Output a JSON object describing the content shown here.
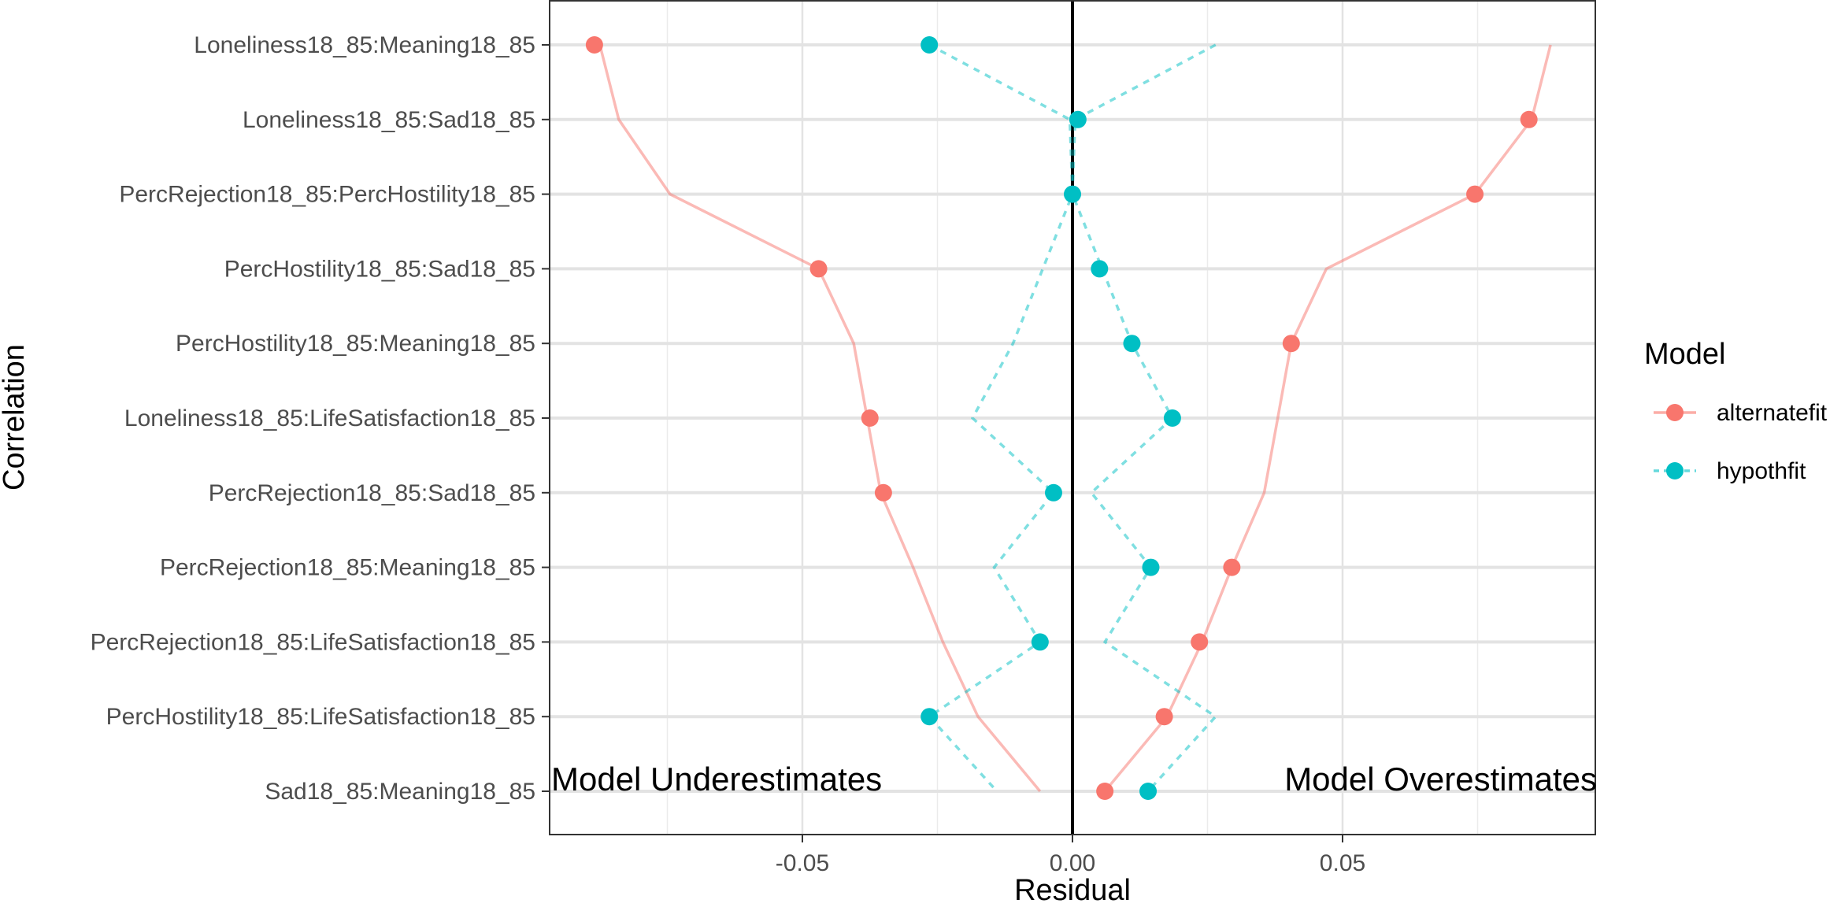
{
  "chart_data": {
    "type": "scatter",
    "xlabel": "Residual",
    "ylabel": "Correlation",
    "xlim": [
      -0.0975,
      0.0975
    ],
    "x_ticks": [
      -0.05,
      0.0,
      0.05
    ],
    "x_tick_labels": [
      "-0.05",
      "0.00",
      "0.05"
    ],
    "grid": true,
    "zero_line": 0.0,
    "categories": [
      "Loneliness18_85:Meaning18_85",
      "Loneliness18_85:Sad18_85",
      "PercRejection18_85:PercHostility18_85",
      "PercHostility18_85:Sad18_85",
      "PercHostility18_85:Meaning18_85",
      "Loneliness18_85:LifeSatisfaction18_85",
      "PercRejection18_85:Sad18_85",
      "PercRejection18_85:Meaning18_85",
      "PercRejection18_85:LifeSatisfaction18_85",
      "PercHostility18_85:LifeSatisfaction18_85",
      "Sad18_85:Meaning18_85"
    ],
    "series": [
      {
        "name": "alternatefit",
        "color": "#F8766D",
        "values": [
          -0.0885,
          0.0845,
          0.0745,
          -0.047,
          0.0405,
          -0.0375,
          -0.035,
          0.0295,
          0.0235,
          0.017,
          0.006
        ],
        "envelope_line": {
          "style": "solid",
          "color": "#F8766D",
          "left": [
            -0.0875,
            -0.084,
            -0.0745,
            -0.047,
            -0.0405,
            -0.038,
            -0.0355,
            -0.0295,
            -0.024,
            -0.0175,
            -0.006
          ],
          "right": [
            0.0885,
            0.085,
            0.0745,
            0.047,
            0.0405,
            0.038,
            0.0355,
            0.0295,
            0.024,
            0.0175,
            0.006
          ]
        }
      },
      {
        "name": "hypothfit",
        "color": "#00BFC4",
        "values": [
          -0.0265,
          0.001,
          0.0,
          0.005,
          0.011,
          0.0185,
          -0.0035,
          0.0145,
          -0.006,
          -0.0265,
          0.014
        ],
        "envelope_line": {
          "style": "dashed",
          "color": "#00BFC4",
          "left": [
            -0.0265,
            -0.0005,
            0.0,
            -0.0055,
            -0.011,
            -0.0185,
            -0.0035,
            -0.0145,
            -0.006,
            -0.0265,
            -0.014
          ],
          "right": [
            0.0265,
            0.0005,
            0.0,
            0.0055,
            0.011,
            0.0185,
            0.0035,
            0.0145,
            0.006,
            0.0265,
            0.014
          ]
        }
      }
    ],
    "annotations": [
      "Model Underestimates",
      "Model Overestimates"
    ],
    "legend": {
      "title": "Model",
      "position": "right",
      "entries": [
        "alternatefit",
        "hypothfit"
      ]
    }
  }
}
